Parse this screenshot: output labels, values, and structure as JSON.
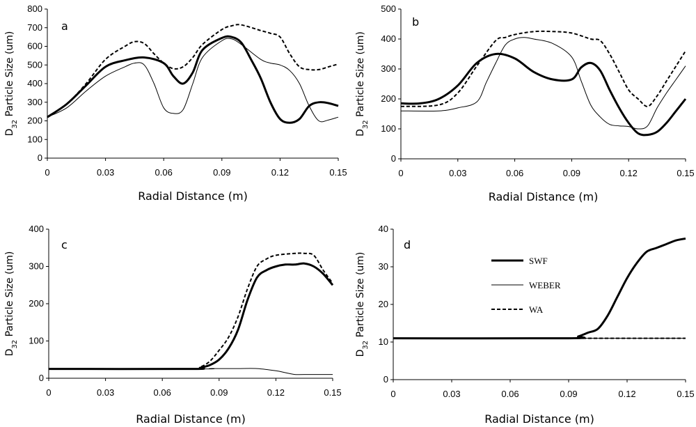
{
  "chart_data": [
    {
      "type": "line",
      "panel_label": "a",
      "xlabel": "Radial Distance (m)",
      "ylabel": {
        "prefix": "D",
        "subscript": "32",
        "rest": " Particle Size (um)"
      },
      "xlim": [
        0,
        0.15
      ],
      "ylim": [
        0,
        800
      ],
      "xticks": [
        "0",
        "0.03",
        "0.06",
        "0.09",
        "0.12",
        "0.15"
      ],
      "yticks": [
        "0",
        "100",
        "200",
        "300",
        "400",
        "500",
        "600",
        "700",
        "800"
      ],
      "legend": false,
      "series": [
        {
          "name": "SWF",
          "style": "thick",
          "x": [
            0,
            0.01,
            0.02,
            0.03,
            0.04,
            0.05,
            0.06,
            0.065,
            0.07,
            0.075,
            0.08,
            0.09,
            0.095,
            0.1,
            0.105,
            0.11,
            0.115,
            0.12,
            0.125,
            0.13,
            0.135,
            0.14,
            0.145,
            0.15
          ],
          "y": [
            220,
            290,
            390,
            490,
            525,
            540,
            510,
            440,
            400,
            460,
            580,
            645,
            650,
            620,
            530,
            430,
            300,
            210,
            190,
            210,
            280,
            300,
            295,
            280
          ]
        },
        {
          "name": "WEBER",
          "style": "thin",
          "x": [
            0,
            0.01,
            0.02,
            0.03,
            0.04,
            0.045,
            0.05,
            0.055,
            0.06,
            0.065,
            0.07,
            0.075,
            0.08,
            0.09,
            0.095,
            0.1,
            0.11,
            0.115,
            0.12,
            0.125,
            0.13,
            0.135,
            0.14,
            0.145,
            0.15
          ],
          "y": [
            220,
            270,
            360,
            440,
            490,
            510,
            500,
            400,
            270,
            240,
            260,
            400,
            540,
            630,
            640,
            610,
            530,
            510,
            500,
            470,
            400,
            280,
            200,
            205,
            220
          ]
        },
        {
          "name": "WA",
          "style": "dashed",
          "x": [
            0,
            0.01,
            0.02,
            0.03,
            0.04,
            0.045,
            0.05,
            0.055,
            0.06,
            0.065,
            0.07,
            0.075,
            0.08,
            0.09,
            0.095,
            0.1,
            0.11,
            0.115,
            0.12,
            0.125,
            0.13,
            0.135,
            0.14,
            0.145,
            0.15
          ],
          "y": [
            220,
            290,
            400,
            530,
            600,
            625,
            615,
            560,
            510,
            480,
            490,
            540,
            610,
            690,
            710,
            715,
            685,
            670,
            650,
            560,
            490,
            475,
            475,
            490,
            505
          ]
        }
      ]
    },
    {
      "type": "line",
      "panel_label": "b",
      "xlabel": "Radial Distance (m)",
      "ylabel": {
        "prefix": "D",
        "subscript": "32",
        "rest": " Particle Size (um)"
      },
      "xlim": [
        0,
        0.15
      ],
      "ylim": [
        0,
        500
      ],
      "xticks": [
        "0",
        "0.03",
        "0.06",
        "0.09",
        "0.12",
        "0.15"
      ],
      "yticks": [
        "0",
        "100",
        "200",
        "300",
        "400",
        "500"
      ],
      "legend": false,
      "series": [
        {
          "name": "SWF",
          "style": "thick",
          "x": [
            0,
            0.01,
            0.02,
            0.03,
            0.04,
            0.05,
            0.06,
            0.07,
            0.08,
            0.09,
            0.095,
            0.1,
            0.105,
            0.11,
            0.115,
            0.12,
            0.125,
            0.13,
            0.135,
            0.14,
            0.145,
            0.15
          ],
          "y": [
            185,
            185,
            200,
            245,
            320,
            350,
            335,
            290,
            265,
            265,
            305,
            320,
            295,
            230,
            170,
            120,
            85,
            80,
            90,
            120,
            160,
            200
          ]
        },
        {
          "name": "WEBER",
          "style": "thin",
          "x": [
            0,
            0.02,
            0.03,
            0.04,
            0.045,
            0.05,
            0.055,
            0.06,
            0.065,
            0.07,
            0.08,
            0.09,
            0.095,
            0.1,
            0.105,
            0.11,
            0.115,
            0.12,
            0.125,
            0.13,
            0.135,
            0.14,
            0.145,
            0.15
          ],
          "y": [
            160,
            160,
            170,
            190,
            255,
            320,
            380,
            400,
            405,
            400,
            385,
            340,
            260,
            180,
            140,
            115,
            110,
            108,
            100,
            110,
            170,
            220,
            265,
            310
          ]
        },
        {
          "name": "WA",
          "style": "dashed",
          "x": [
            0,
            0.02,
            0.03,
            0.04,
            0.05,
            0.055,
            0.06,
            0.07,
            0.08,
            0.09,
            0.1,
            0.105,
            0.11,
            0.115,
            0.12,
            0.125,
            0.13,
            0.135,
            0.14,
            0.145,
            0.15
          ],
          "y": [
            175,
            180,
            220,
            310,
            395,
            405,
            415,
            425,
            425,
            420,
            400,
            395,
            350,
            290,
            230,
            200,
            175,
            210,
            260,
            310,
            360
          ]
        }
      ]
    },
    {
      "type": "line",
      "panel_label": "c",
      "xlabel": "Radial Distance (m)",
      "ylabel": {
        "prefix": "D",
        "subscript": "32",
        "rest": " Particle Size (um)"
      },
      "xlim": [
        0,
        0.15
      ],
      "ylim": [
        0,
        400
      ],
      "xticks": [
        "0",
        "0.03",
        "0.06",
        "0.09",
        "0.12",
        "0.15"
      ],
      "yticks": [
        "0",
        "100",
        "200",
        "300",
        "400"
      ],
      "legend": false,
      "series": [
        {
          "name": "SWF",
          "style": "thick",
          "x": [
            0,
            0.075,
            0.08,
            0.085,
            0.09,
            0.095,
            0.1,
            0.105,
            0.11,
            0.115,
            0.12,
            0.125,
            0.13,
            0.135,
            0.14,
            0.145,
            0.15
          ],
          "y": [
            25,
            25,
            28,
            35,
            50,
            80,
            130,
            210,
            270,
            290,
            300,
            305,
            305,
            308,
            300,
            280,
            250
          ]
        },
        {
          "name": "WEBER",
          "style": "thin",
          "x": [
            0,
            0.08,
            0.085,
            0.09,
            0.1,
            0.11,
            0.12,
            0.125,
            0.13,
            0.135,
            0.15
          ],
          "y": [
            25,
            25,
            26,
            26,
            26,
            26,
            20,
            15,
            10,
            10,
            10
          ]
        },
        {
          "name": "WA",
          "style": "dashed",
          "x": [
            0,
            0.075,
            0.08,
            0.085,
            0.09,
            0.095,
            0.1,
            0.105,
            0.11,
            0.115,
            0.12,
            0.13,
            0.135,
            0.14,
            0.145,
            0.15
          ],
          "y": [
            25,
            25,
            30,
            45,
            75,
            110,
            165,
            240,
            300,
            320,
            330,
            335,
            335,
            330,
            290,
            255
          ]
        }
      ]
    },
    {
      "type": "line",
      "panel_label": "d",
      "xlabel": "Radial Distance (m)",
      "ylabel": {
        "prefix": "D",
        "subscript": "32",
        "rest": " Particle Size (um)"
      },
      "xlim": [
        0,
        0.15
      ],
      "ylim": [
        0,
        40
      ],
      "xticks": [
        "0",
        "0.03",
        "0.06",
        "0.09",
        "0.12",
        "0.15"
      ],
      "yticks": [
        "0",
        "10",
        "20",
        "30",
        "40"
      ],
      "legend": true,
      "series": [
        {
          "name": "SWF",
          "style": "thick",
          "x": [
            0,
            0.09,
            0.095,
            0.1,
            0.105,
            0.11,
            0.115,
            0.12,
            0.125,
            0.13,
            0.135,
            0.14,
            0.145,
            0.15
          ],
          "y": [
            11,
            11,
            11.5,
            12.5,
            13.5,
            17,
            22,
            27,
            31,
            34,
            35,
            36,
            37,
            37.5
          ]
        },
        {
          "name": "WEBER",
          "style": "thin",
          "x": [
            0,
            0.15
          ],
          "y": [
            11,
            11
          ]
        },
        {
          "name": "WA",
          "style": "dashed",
          "x": [
            0,
            0.15
          ],
          "y": [
            11,
            11
          ]
        }
      ]
    }
  ]
}
